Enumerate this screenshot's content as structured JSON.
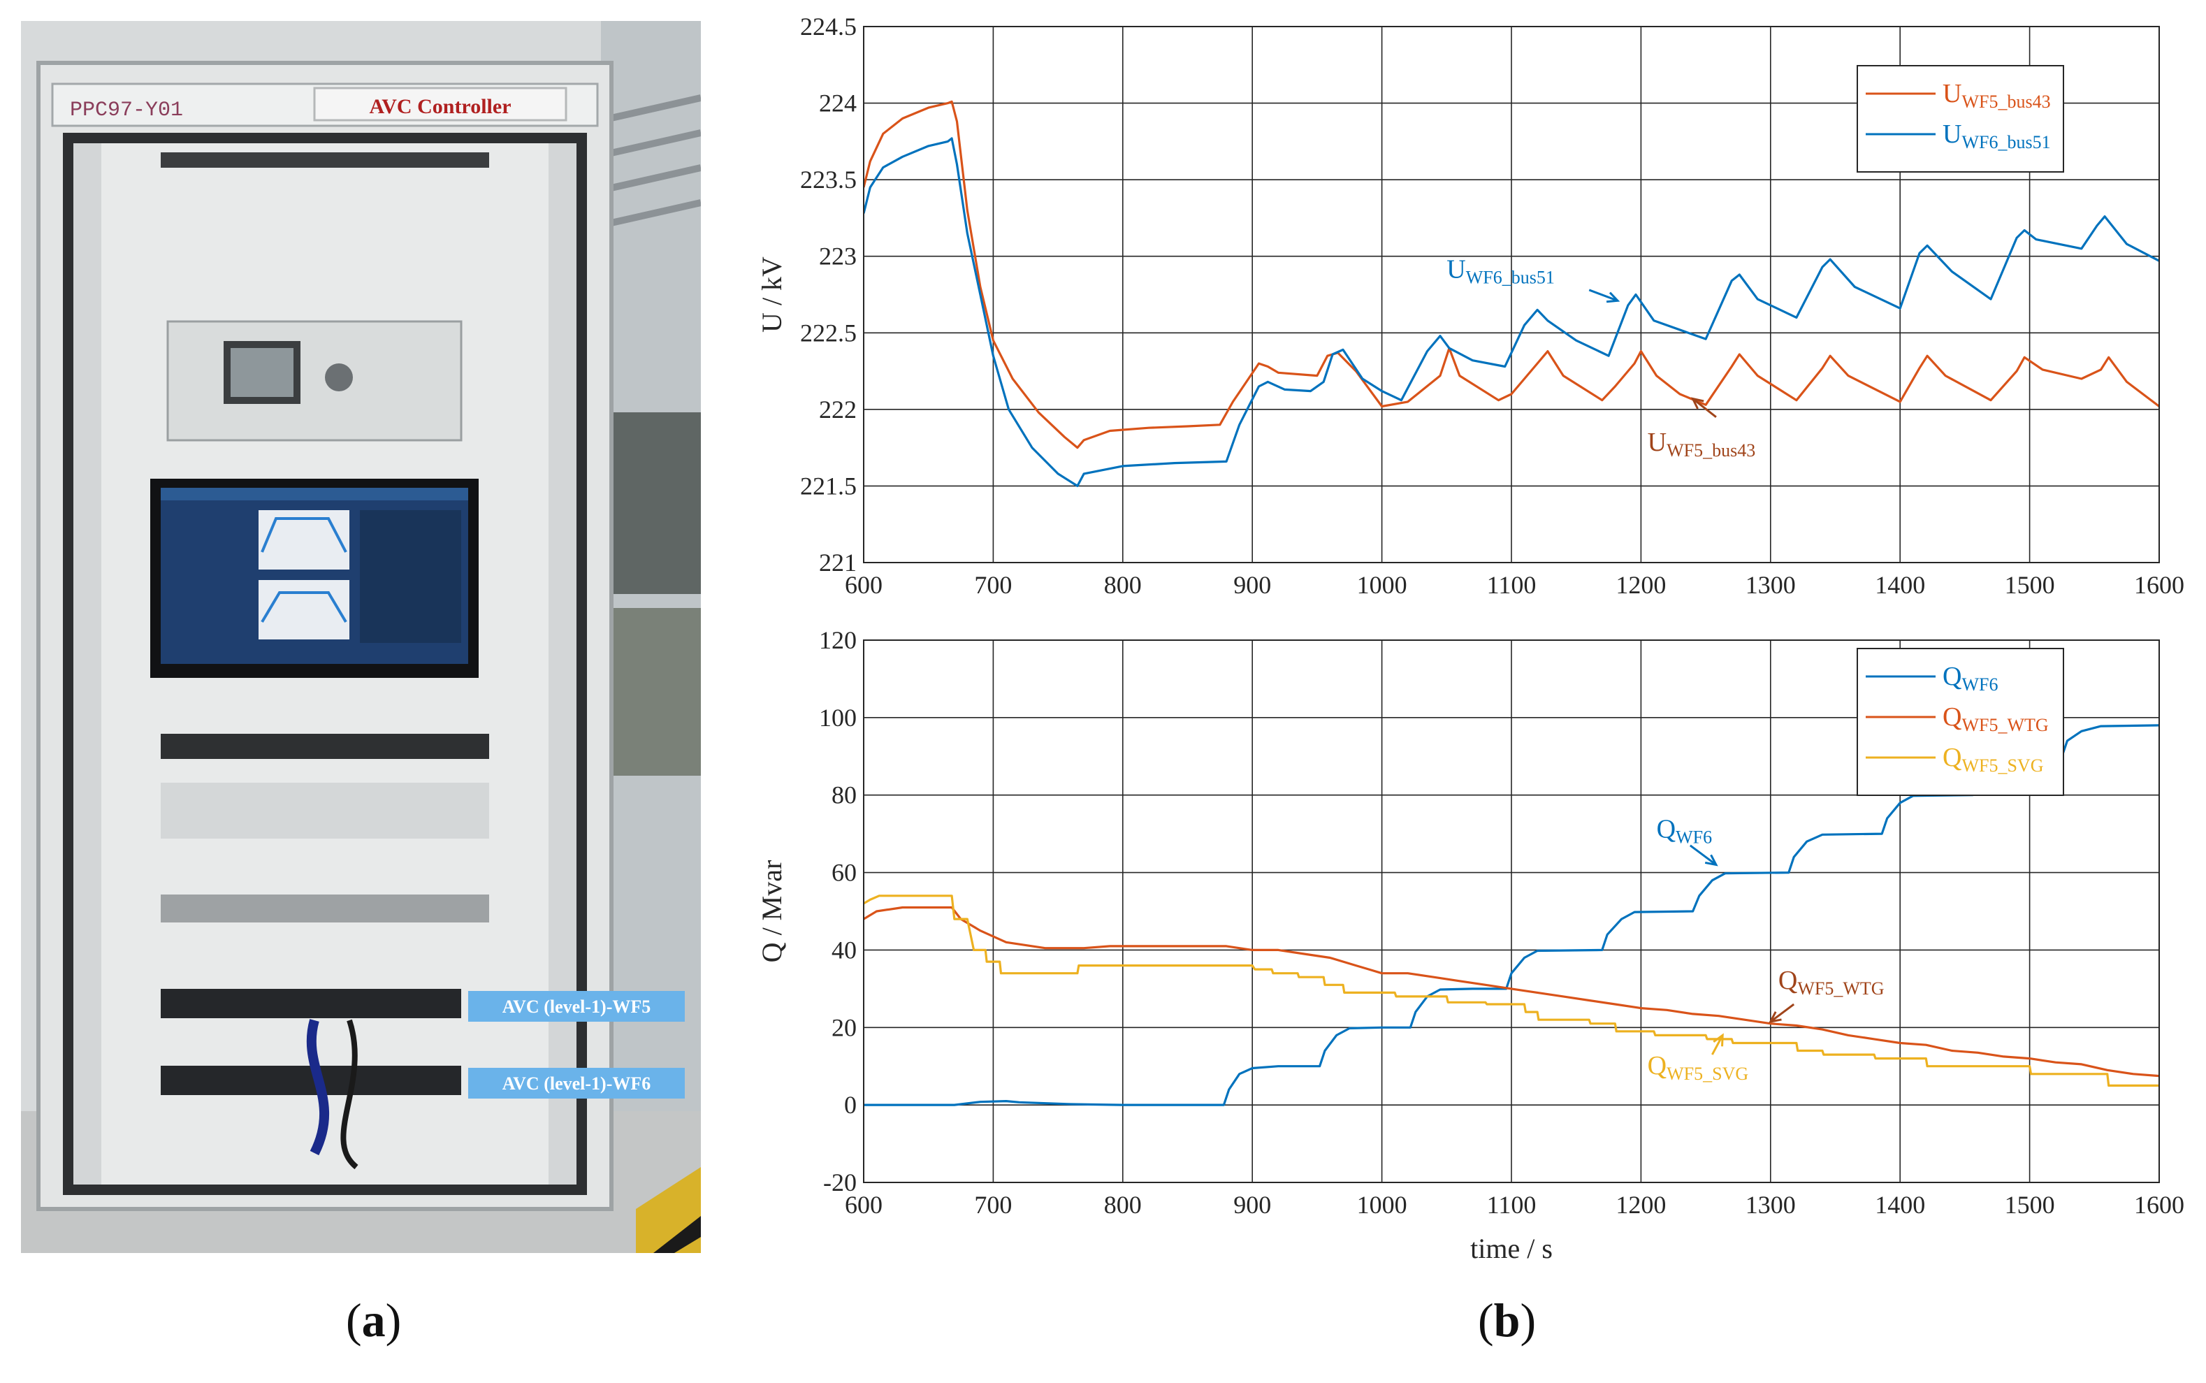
{
  "photo": {
    "cabinet_id": "PPC97-Y01",
    "cabinet_title": "AVC Controller",
    "callout_wf5": "AVC (level-1)-WF5",
    "callout_wf6": "AVC (level-1)-WF6"
  },
  "labels": {
    "a": "a",
    "b": "b"
  },
  "colors": {
    "blue": "#0072BD",
    "orange": "#D95319",
    "yellow": "#EDB120",
    "grid": "#262626"
  },
  "chart_data": [
    {
      "type": "line",
      "ylabel": "U / kV",
      "xlabel": "",
      "xlim": [
        600,
        1600
      ],
      "ylim": [
        221,
        224.5
      ],
      "xticks": [
        600,
        700,
        800,
        900,
        1000,
        1100,
        1200,
        1300,
        1400,
        1500,
        1600
      ],
      "yticks": [
        221,
        221.5,
        222,
        222.5,
        223,
        223.5,
        224,
        224.5
      ],
      "ytick_labels": [
        "221",
        "221.5",
        "222",
        "222.5",
        "223",
        "223.5",
        "224",
        "224.5"
      ],
      "grid": true,
      "legend_position": "top-right",
      "legend": [
        {
          "main": "U",
          "sub": "WF5_bus43",
          "color": "#D95319"
        },
        {
          "main": "U",
          "sub": "WF6_bus51",
          "color": "#0072BD"
        }
      ],
      "annotations": [
        {
          "main": "U",
          "sub": "WF6_bus51",
          "color": "#0072BD",
          "text_at": [
            1050,
            222.86
          ],
          "arrow_to": [
            1182,
            222.71
          ],
          "arrow_from": [
            1160,
            222.78
          ]
        },
        {
          "main": "U",
          "sub": "WF5_bus43",
          "color": "#A0441A",
          "text_at": [
            1205,
            221.73
          ],
          "arrow_to": [
            1240,
            222.07
          ],
          "arrow_from": [
            1258,
            221.95
          ]
        }
      ],
      "series": [
        {
          "name": "UWF5_bus43",
          "color": "#D95319",
          "x": [
            600,
            605,
            615,
            630,
            650,
            665,
            668,
            672,
            680,
            690,
            700,
            715,
            735,
            755,
            765,
            770,
            790,
            820,
            850,
            875,
            885,
            905,
            912,
            920,
            950,
            958,
            966,
            980,
            1000,
            1020,
            1045,
            1052,
            1060,
            1090,
            1100,
            1120,
            1128,
            1140,
            1170,
            1180,
            1195,
            1200,
            1212,
            1230,
            1250,
            1270,
            1276,
            1290,
            1320,
            1340,
            1346,
            1360,
            1400,
            1415,
            1421,
            1435,
            1470,
            1490,
            1496,
            1510,
            1540,
            1555,
            1561,
            1575,
            1600
          ],
          "y": [
            223.45,
            223.62,
            223.8,
            223.9,
            223.97,
            224.0,
            224.01,
            223.88,
            223.3,
            222.8,
            222.45,
            222.2,
            221.98,
            221.82,
            221.75,
            221.8,
            221.86,
            221.88,
            221.89,
            221.9,
            222.05,
            222.3,
            222.28,
            222.24,
            222.22,
            222.35,
            222.37,
            222.25,
            222.02,
            222.05,
            222.22,
            222.4,
            222.22,
            222.06,
            222.1,
            222.3,
            222.38,
            222.22,
            222.06,
            222.15,
            222.3,
            222.38,
            222.22,
            222.1,
            222.03,
            222.28,
            222.36,
            222.22,
            222.06,
            222.27,
            222.35,
            222.22,
            222.05,
            222.27,
            222.35,
            222.22,
            222.06,
            222.25,
            222.34,
            222.26,
            222.2,
            222.26,
            222.34,
            222.18,
            222.02
          ]
        },
        {
          "name": "UWF6_bus51",
          "color": "#0072BD",
          "x": [
            600,
            605,
            615,
            630,
            650,
            665,
            668,
            672,
            680,
            690,
            700,
            712,
            730,
            750,
            765,
            770,
            800,
            840,
            880,
            890,
            905,
            912,
            925,
            945,
            955,
            962,
            970,
            985,
            1000,
            1015,
            1035,
            1045,
            1052,
            1070,
            1095,
            1110,
            1120,
            1128,
            1150,
            1175,
            1190,
            1196,
            1210,
            1250,
            1270,
            1276,
            1290,
            1320,
            1340,
            1346,
            1365,
            1400,
            1415,
            1421,
            1440,
            1470,
            1490,
            1496,
            1505,
            1540,
            1552,
            1558,
            1575,
            1600
          ],
          "y": [
            223.28,
            223.45,
            223.58,
            223.65,
            223.72,
            223.75,
            223.77,
            223.6,
            223.15,
            222.75,
            222.35,
            222.0,
            221.75,
            221.58,
            221.5,
            221.58,
            221.63,
            221.65,
            221.66,
            221.9,
            222.15,
            222.18,
            222.13,
            222.12,
            222.18,
            222.36,
            222.39,
            222.2,
            222.12,
            222.06,
            222.38,
            222.48,
            222.4,
            222.32,
            222.28,
            222.55,
            222.65,
            222.58,
            222.45,
            222.35,
            222.68,
            222.75,
            222.58,
            222.46,
            222.84,
            222.88,
            222.72,
            222.6,
            222.93,
            222.98,
            222.8,
            222.66,
            223.02,
            223.07,
            222.9,
            222.72,
            223.12,
            223.17,
            223.11,
            223.05,
            223.2,
            223.26,
            223.08,
            222.97
          ]
        }
      ]
    },
    {
      "type": "line",
      "ylabel": "Q / Mvar",
      "xlabel": "time / s",
      "xlim": [
        600,
        1600
      ],
      "ylim": [
        -20,
        120
      ],
      "xticks": [
        600,
        700,
        800,
        900,
        1000,
        1100,
        1200,
        1300,
        1400,
        1500,
        1600
      ],
      "yticks": [
        -20,
        0,
        20,
        40,
        60,
        80,
        100,
        120
      ],
      "ytick_labels": [
        "-20",
        "0",
        "20",
        "40",
        "60",
        "80",
        "100",
        "120"
      ],
      "grid": true,
      "legend_position": "top-right",
      "legend": [
        {
          "main": "Q",
          "sub": "WF6",
          "color": "#0072BD"
        },
        {
          "main": "Q",
          "sub": "WF5_WTG",
          "color": "#D95319"
        },
        {
          "main": "Q",
          "sub": "WF5_SVG",
          "color": "#EDB120"
        }
      ],
      "annotations": [
        {
          "main": "Q",
          "sub": "WF6",
          "color": "#0072BD",
          "text_at": [
            1212,
            69
          ],
          "arrow_to": [
            1258,
            62
          ],
          "arrow_from": [
            1238,
            67
          ]
        },
        {
          "main": "Q",
          "sub": "WF5_WTG",
          "color": "#A0441A",
          "text_at": [
            1306,
            30
          ],
          "arrow_to": [
            1300,
            21.5
          ],
          "arrow_from": [
            1318,
            26
          ]
        },
        {
          "main": "Q",
          "sub": "WF5_SVG",
          "color": "#EDB120",
          "text_at": [
            1205,
            8
          ],
          "arrow_to": [
            1263,
            18
          ],
          "arrow_from": [
            1255,
            13
          ]
        }
      ],
      "series": [
        {
          "name": "QWF6",
          "color": "#0072BD",
          "x": [
            600,
            650,
            670,
            690,
            710,
            720,
            760,
            800,
            850,
            878,
            882,
            890,
            900,
            920,
            952,
            956,
            965,
            975,
            1000,
            1022,
            1026,
            1035,
            1045,
            1070,
            1096,
            1100,
            1110,
            1120,
            1170,
            1174,
            1185,
            1195,
            1240,
            1245,
            1255,
            1265,
            1314,
            1318,
            1328,
            1340,
            1386,
            1390,
            1400,
            1410,
            1456,
            1460,
            1470,
            1480,
            1525,
            1529,
            1540,
            1555,
            1600
          ],
          "y": [
            0,
            0,
            0,
            0.8,
            1,
            0.7,
            0.2,
            0,
            0,
            0,
            4,
            8,
            9.5,
            10,
            10,
            14,
            18,
            19.8,
            20,
            20,
            24,
            28,
            29.8,
            30,
            30,
            34,
            38,
            39.8,
            40,
            44,
            48,
            49.8,
            50,
            54,
            58,
            59.8,
            60,
            64,
            68,
            69.8,
            70,
            74,
            78,
            79.8,
            80,
            84,
            88,
            89.8,
            90,
            94,
            96.5,
            97.8,
            98
          ]
        },
        {
          "name": "QWF5_WTG",
          "color": "#D95319",
          "x": [
            600,
            610,
            630,
            668,
            675,
            690,
            710,
            740,
            770,
            790,
            880,
            890,
            900,
            920,
            940,
            960,
            980,
            990,
            1000,
            1020,
            1040,
            1060,
            1080,
            1100,
            1120,
            1140,
            1160,
            1180,
            1200,
            1220,
            1240,
            1260,
            1280,
            1300,
            1320,
            1340,
            1360,
            1380,
            1400,
            1420,
            1440,
            1460,
            1480,
            1500,
            1520,
            1540,
            1560,
            1580,
            1600
          ],
          "y": [
            48,
            50,
            51,
            51,
            48,
            45,
            42,
            40.5,
            40.5,
            41,
            41,
            40.5,
            40,
            40,
            39,
            38,
            36,
            35,
            34,
            34,
            33,
            32,
            31,
            30,
            29,
            28,
            27,
            26,
            25,
            24.5,
            23.5,
            23,
            22,
            21,
            20.5,
            19.5,
            18,
            17,
            16,
            15.5,
            14,
            13.5,
            12.5,
            12,
            11,
            10.5,
            9,
            8,
            7.5
          ]
        },
        {
          "name": "QWF5_SVG",
          "color": "#EDB120",
          "x": [
            600,
            605,
            612,
            620,
            668,
            670,
            680,
            685,
            694,
            695,
            705,
            706,
            765,
            766,
            900,
            902,
            915,
            916,
            935,
            936,
            955,
            956,
            970,
            971,
            1010,
            1011,
            1050,
            1051,
            1080,
            1081,
            1110,
            1111,
            1120,
            1121,
            1160,
            1161,
            1180,
            1181,
            1210,
            1211,
            1250,
            1251,
            1270,
            1271,
            1320,
            1321,
            1340,
            1341,
            1380,
            1381,
            1420,
            1421,
            1440,
            1441,
            1500,
            1501,
            1560,
            1561,
            1600
          ],
          "y": [
            52,
            53,
            54,
            54,
            54,
            48,
            48,
            40,
            40,
            37,
            37,
            34,
            34,
            36,
            36,
            35,
            35,
            34,
            34,
            33,
            33,
            31,
            31,
            29,
            29,
            28,
            28,
            26.5,
            26.5,
            26,
            26,
            24,
            24,
            22,
            22,
            21,
            21,
            19,
            19,
            18,
            18,
            17,
            17,
            16,
            16,
            14,
            14,
            13,
            13,
            12,
            12,
            10,
            10,
            10,
            10,
            8,
            8,
            5,
            5
          ]
        }
      ]
    }
  ]
}
